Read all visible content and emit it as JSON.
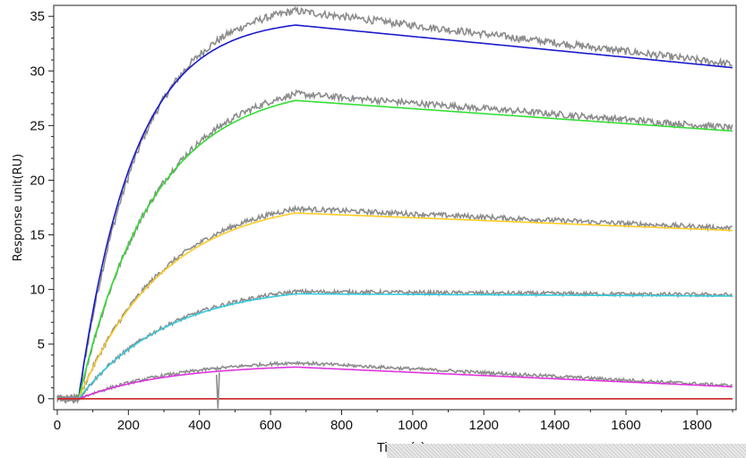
{
  "chart_data": {
    "type": "line",
    "title": "",
    "xlabel": "Time (s)",
    "ylabel": "Response unit(RU)",
    "xlim": [
      -10,
      1910
    ],
    "ylim": [
      -1,
      36
    ],
    "x_ticks": [
      0,
      200,
      400,
      600,
      800,
      1000,
      1200,
      1400,
      1600,
      1800
    ],
    "y_ticks": [
      0,
      5,
      10,
      15,
      20,
      25,
      30,
      35
    ],
    "grid": false,
    "legend": "none",
    "injection_start": 60,
    "injection_end": 670,
    "series": [
      {
        "role": "fit",
        "color": "#1a1acc",
        "plateau": 34.2,
        "end_value": 30.3,
        "assoc_rate": 0.0065
      },
      {
        "role": "fit",
        "color": "#33dd33",
        "plateau": 27.3,
        "end_value": 24.5,
        "assoc_rate": 0.0048
      },
      {
        "role": "fit",
        "color": "#ffcc22",
        "plateau": 17.0,
        "end_value": 15.4,
        "assoc_rate": 0.0042
      },
      {
        "role": "fit",
        "color": "#33ccdd",
        "plateau": 9.6,
        "end_value": 9.4,
        "assoc_rate": 0.004
      },
      {
        "role": "fit",
        "color": "#dd33dd",
        "plateau": 2.9,
        "end_value": 1.1,
        "assoc_rate": 0.004
      },
      {
        "role": "fit",
        "color": "#cc2222",
        "plateau": 0.0,
        "end_value": 0.0,
        "assoc_rate": 0.004
      },
      {
        "role": "measured",
        "color": "#8c8c8c",
        "plateau": 35.5,
        "end_value": 30.6,
        "assoc_rate": 0.0058
      },
      {
        "role": "measured",
        "color": "#8c8c8c",
        "plateau": 27.9,
        "end_value": 24.8,
        "assoc_rate": 0.0046
      },
      {
        "role": "measured",
        "color": "#8c8c8c",
        "plateau": 17.4,
        "end_value": 15.6,
        "assoc_rate": 0.0041
      },
      {
        "role": "measured",
        "color": "#8c8c8c",
        "plateau": 9.8,
        "end_value": 9.5,
        "assoc_rate": 0.0039
      },
      {
        "role": "measured",
        "color": "#8c8c8c",
        "plateau": 3.3,
        "end_value": 1.2,
        "assoc_rate": 0.0035
      }
    ]
  }
}
